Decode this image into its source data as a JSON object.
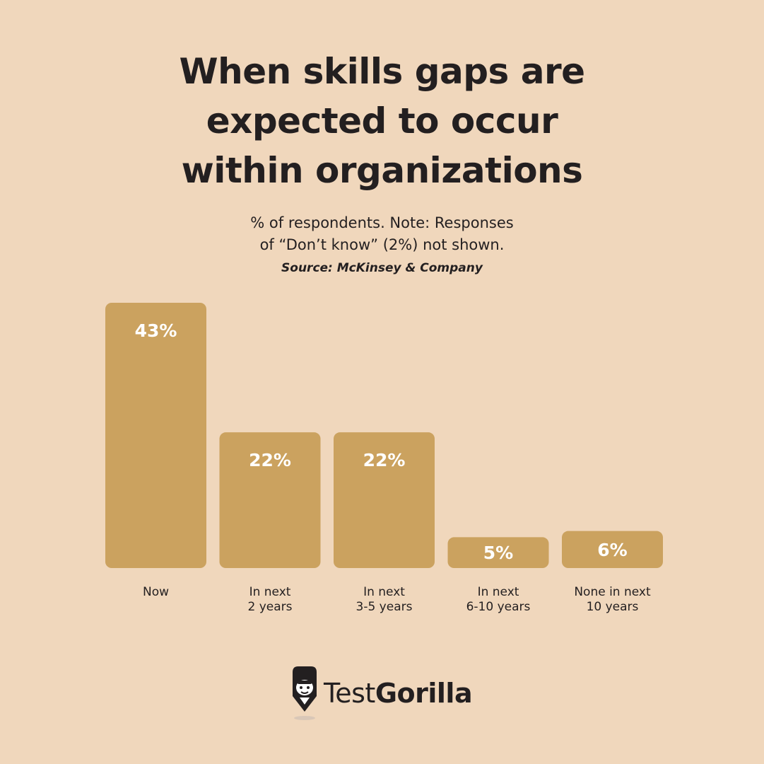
{
  "chart_data": {
    "type": "bar",
    "title": [
      "When skills gaps are",
      "expected to occur",
      "within organizations"
    ],
    "subtitle": [
      "% of respondents. Note: Responses",
      "of “Don’t know” (2%) not shown."
    ],
    "source": "Source: McKinsey & Company",
    "categories": [
      [
        "Now"
      ],
      [
        "In next",
        "2 years"
      ],
      [
        "In next",
        "3-5 years"
      ],
      [
        "In next",
        "6-10 years"
      ],
      [
        "None in next",
        "10 years"
      ]
    ],
    "values": [
      43,
      22,
      22,
      5,
      6
    ],
    "value_labels": [
      "43%",
      "22%",
      "22%",
      "5%",
      "6%"
    ],
    "unit": "%",
    "ylim": [
      0,
      43
    ],
    "grid": false,
    "legend": "none",
    "bar_color": "#cba25f",
    "label_color": "#ffffff"
  },
  "brand": {
    "name_regular": "Test",
    "name_bold": "Gorilla",
    "icon": "gorilla-icon"
  },
  "colors": {
    "background": "#f0d7bc",
    "text": "#231f20"
  }
}
